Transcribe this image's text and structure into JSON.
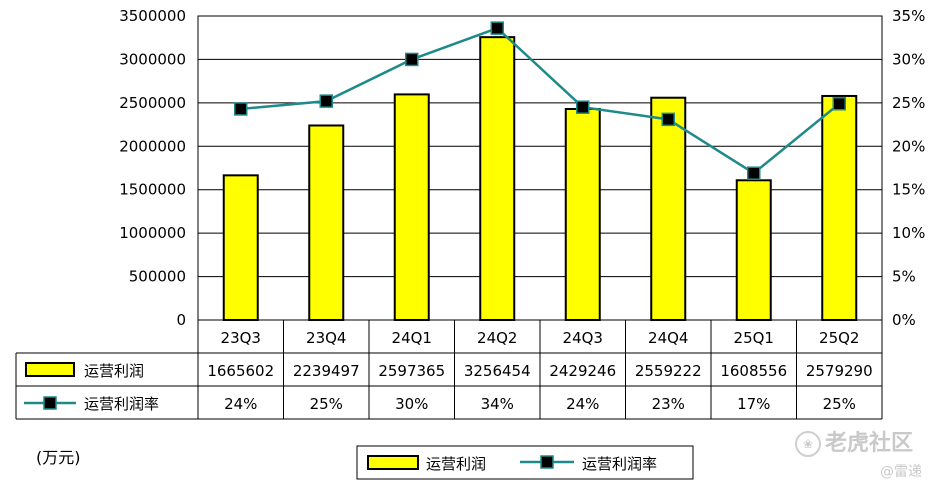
{
  "chart_data": {
    "type": "bar+line",
    "categories": [
      "23Q3",
      "23Q4",
      "24Q1",
      "24Q2",
      "24Q3",
      "24Q4",
      "25Q1",
      "25Q2"
    ],
    "series": [
      {
        "name": "运营利润",
        "type": "bar",
        "axis": "left",
        "values": [
          1665602,
          2239497,
          2597365,
          3256454,
          2429246,
          2559222,
          1608556,
          2579290
        ],
        "labels": [
          "1665602",
          "2239497",
          "2597365",
          "3256454",
          "2429246",
          "2559222",
          "1608556",
          "2579290"
        ],
        "color": "#ffff00"
      },
      {
        "name": "运营利润率",
        "type": "line",
        "axis": "right",
        "values": [
          24.3,
          25.2,
          30.0,
          33.6,
          24.5,
          23.1,
          16.9,
          24.9
        ],
        "labels": [
          "24%",
          "25%",
          "30%",
          "34%",
          "24%",
          "23%",
          "17%",
          "25%"
        ],
        "color": "#1f8a8a"
      }
    ],
    "y_left": {
      "min": 0,
      "max": 3500000,
      "step": 500000,
      "ticks": [
        "0",
        "500000",
        "1000000",
        "1500000",
        "2000000",
        "2500000",
        "3000000",
        "3500000"
      ]
    },
    "y_right": {
      "min": 0,
      "max": 35,
      "step": 5,
      "ticks": [
        "0%",
        "5%",
        "10%",
        "15%",
        "20%",
        "25%",
        "30%",
        "35%"
      ]
    },
    "grid": true,
    "legend_position": "bottom-center",
    "unit_label": "(万元)"
  },
  "watermark": {
    "site": "老虎社区",
    "author": "@雷递"
  }
}
